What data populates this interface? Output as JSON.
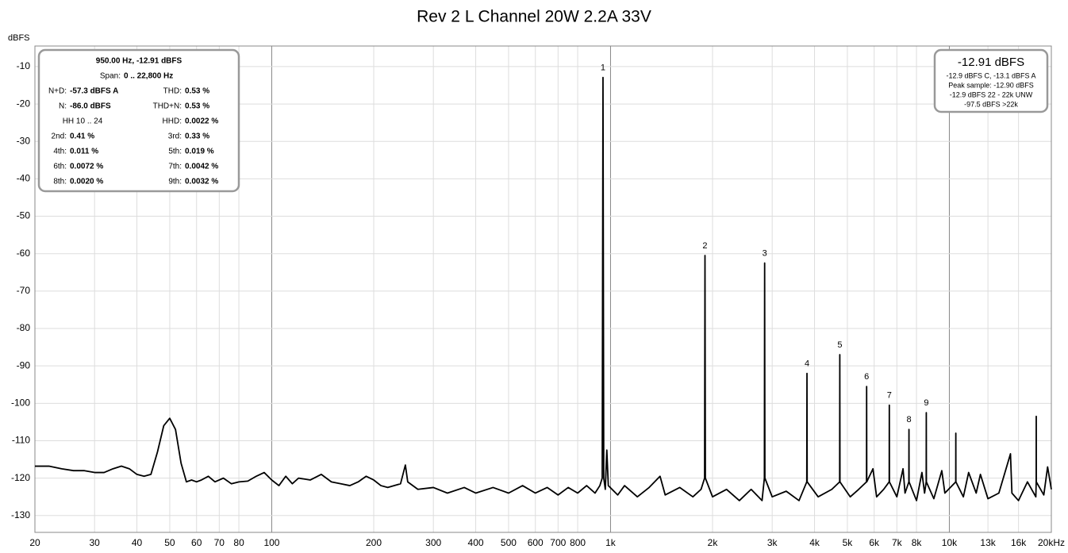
{
  "chart_data": {
    "type": "line",
    "title": "Rev 2 L Channel 20W 2.2A 33V",
    "y_label": "dBFS",
    "log_x": true,
    "grid": true,
    "color": "#000000",
    "xlim": [
      20,
      20000
    ],
    "ylim": [
      -134.5,
      -4.5
    ],
    "xticks": [
      20,
      30,
      40,
      50,
      60,
      70,
      80,
      100,
      200,
      300,
      400,
      500,
      600,
      700,
      800,
      {
        "value": 1000,
        "label": "1k"
      },
      {
        "value": 2000,
        "label": "2k"
      },
      {
        "value": 3000,
        "label": "3k"
      },
      {
        "value": 4000,
        "label": "4k"
      },
      {
        "value": 5000,
        "label": "5k"
      },
      {
        "value": 6000,
        "label": "6k"
      },
      {
        "value": 7000,
        "label": "7k"
      },
      {
        "value": 8000,
        "label": "8k"
      },
      {
        "value": 10000,
        "label": "10k"
      },
      {
        "value": 13000,
        "label": "13k"
      },
      {
        "value": 16000,
        "label": "16k"
      },
      {
        "value": 20000,
        "label": "20kHz"
      }
    ],
    "yticks": [
      -10,
      -20,
      -30,
      -40,
      -50,
      -60,
      -70,
      -80,
      -90,
      -100,
      -110,
      -120,
      -130
    ],
    "x": [
      20,
      22,
      24,
      26,
      28,
      30,
      32,
      34,
      36,
      38,
      40,
      42,
      44,
      46,
      48,
      50,
      52,
      54,
      56,
      58,
      60,
      62,
      65,
      68,
      72,
      76,
      80,
      85,
      90,
      95,
      100,
      105,
      110,
      115,
      120,
      130,
      140,
      150,
      160,
      170,
      180,
      190,
      200,
      210,
      220,
      240,
      248,
      252,
      270,
      300,
      330,
      370,
      400,
      450,
      500,
      550,
      600,
      650,
      700,
      750,
      800,
      850,
      900,
      930,
      945,
      950,
      955,
      965,
      975,
      985,
      1050,
      1100,
      1200,
      1300,
      1400,
      1450,
      1600,
      1750,
      1850,
      1895,
      1900,
      1905,
      2000,
      2200,
      2400,
      2600,
      2800,
      2845,
      2850,
      2855,
      3000,
      3300,
      3600,
      3795,
      3800,
      3805,
      4100,
      4500,
      4745,
      4750,
      4755,
      5100,
      5400,
      5695,
      5700,
      5705,
      5950,
      6100,
      6400,
      6645,
      6650,
      6655,
      7000,
      7300,
      7400,
      7595,
      7600,
      7605,
      8000,
      8300,
      8450,
      8545,
      8550,
      8555,
      9000,
      9500,
      9700,
      10445,
      10450,
      10455,
      11000,
      11400,
      12000,
      12350,
      13000,
      14000,
      15150,
      15300,
      16000,
      17000,
      18000,
      18045,
      18050,
      18055,
      19000,
      19500,
      20000
    ],
    "values": [
      -116.8,
      -116.8,
      -117.5,
      -118,
      -118,
      -118.5,
      -118.5,
      -117.5,
      -116.8,
      -117.5,
      -119,
      -119.5,
      -119,
      -113,
      -106,
      -104,
      -107,
      -116,
      -121,
      -120.5,
      -121,
      -120.5,
      -119.5,
      -121,
      -120,
      -121.5,
      -121,
      -120.8,
      -119.5,
      -118.5,
      -120.5,
      -122,
      -119.5,
      -121.5,
      -120,
      -120.5,
      -119,
      -121,
      -121.5,
      -122,
      -121,
      -119.5,
      -120.5,
      -122,
      -122.5,
      -121.5,
      -116.5,
      -121,
      -123,
      -122.5,
      -124,
      -122.5,
      -124,
      -122.5,
      -124,
      -122,
      -124,
      -122.5,
      -124.5,
      -122.5,
      -124,
      -122,
      -124,
      -122,
      -120,
      -12.91,
      -120,
      -123,
      -112.5,
      -122,
      -124.5,
      -122,
      -125,
      -122.5,
      -119.5,
      -124.5,
      -122.5,
      -125,
      -123,
      -120,
      -60.5,
      -120,
      -125,
      -123,
      -126,
      -123,
      -126,
      -120,
      -62.5,
      -120,
      -125,
      -123.5,
      -126,
      -121,
      -92,
      -121,
      -125,
      -123,
      -121,
      -87,
      -121,
      -125,
      -123,
      -121,
      -95.5,
      -121,
      -117.5,
      -125,
      -123,
      -121,
      -100.5,
      -121,
      -125,
      -117.5,
      -124,
      -121,
      -107,
      -121,
      -126,
      -118.5,
      -124,
      -121,
      -102.5,
      -121,
      -125.5,
      -118,
      -124,
      -121,
      -108,
      -121,
      -125,
      -118.5,
      -124,
      -119,
      -125.5,
      -124,
      -113.5,
      -124,
      -126,
      -121,
      -125,
      -121,
      -103.5,
      -121,
      -124.5,
      -117,
      -123
    ],
    "annotations": [
      {
        "text": "1",
        "x": 950,
        "y": -12.91
      },
      {
        "text": "2",
        "x": 1900,
        "y": -60.5
      },
      {
        "text": "3",
        "x": 2850,
        "y": -62.5
      },
      {
        "text": "4",
        "x": 3800,
        "y": -92
      },
      {
        "text": "5",
        "x": 4750,
        "y": -87
      },
      {
        "text": "6",
        "x": 5700,
        "y": -95.5
      },
      {
        "text": "7",
        "x": 6650,
        "y": -100.5
      },
      {
        "text": "8",
        "x": 7600,
        "y": -107
      },
      {
        "text": "9",
        "x": 8550,
        "y": -102.5
      }
    ]
  },
  "measurement_box": {
    "header": "950.00 Hz, -12.91 dBFS",
    "span": {
      "label": "Span:",
      "value": "0 .. 22,800 Hz"
    },
    "rows": [
      [
        {
          "label": "N+D:",
          "value": "-57.3 dBFS A"
        },
        {
          "label": "THD:",
          "value": "0.53 %"
        }
      ],
      [
        {
          "label": "N:",
          "value": "-86.0 dBFS"
        },
        {
          "label": "THD+N:",
          "value": "0.53 %"
        }
      ],
      [
        {
          "label": "HH 10 .. 24"
        },
        {
          "label": "HHD:",
          "value": "0.0022 %"
        }
      ],
      [
        {
          "label": "2nd:",
          "value": "0.41 %"
        },
        {
          "label": "3rd:",
          "value": "0.33 %"
        }
      ],
      [
        {
          "label": "4th:",
          "value": "0.011 %"
        },
        {
          "label": "5th:",
          "value": "0.019 %"
        }
      ],
      [
        {
          "label": "6th:",
          "value": "0.0072 %"
        },
        {
          "label": "7th:",
          "value": "0.0042 %"
        }
      ],
      [
        {
          "label": "8th:",
          "value": "0.0020 %"
        },
        {
          "label": "9th:",
          "value": "0.0032 %"
        }
      ]
    ]
  },
  "level_box": {
    "level": "-12.91 dBFS",
    "lines": [
      "-12.9 dBFS C, -13.1 dBFS A",
      "Peak sample: -12.90 dBFS",
      "-12.9 dBFS 22 - 22k UNW",
      "-97.5 dBFS >22k"
    ]
  }
}
